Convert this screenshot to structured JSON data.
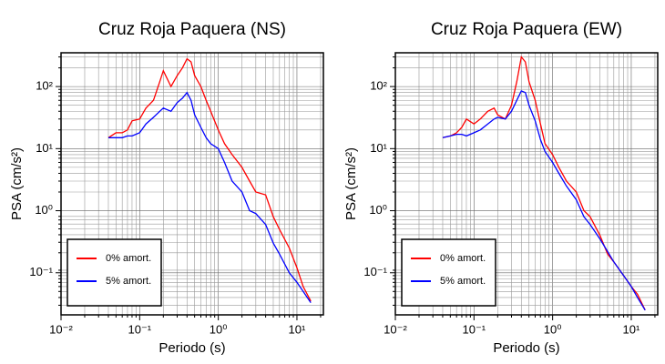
{
  "chart_data": [
    {
      "type": "line",
      "title": "Cruz Roja Paquera (NS)",
      "xlabel": "Periodo (s)",
      "ylabel": "PSA (cm/s²)",
      "x": [
        0.04,
        0.05,
        0.06,
        0.07,
        0.08,
        0.1,
        0.12,
        0.15,
        0.18,
        0.2,
        0.25,
        0.3,
        0.35,
        0.4,
        0.45,
        0.5,
        0.6,
        0.7,
        0.8,
        1.0,
        1.2,
        1.5,
        2,
        2.5,
        3,
        4,
        5,
        6,
        8,
        10,
        12,
        15
      ],
      "series": [
        {
          "name": "0% amort.",
          "color": "#ff0000",
          "values": [
            15,
            18,
            18,
            20,
            28,
            30,
            45,
            60,
            120,
            180,
            100,
            150,
            200,
            280,
            250,
            150,
            100,
            60,
            40,
            20,
            12,
            8,
            5,
            3,
            2,
            1.8,
            0.8,
            0.5,
            0.25,
            0.12,
            0.06,
            0.035
          ]
        },
        {
          "name": "5% amort.",
          "color": "#0000ff",
          "values": [
            15,
            15,
            15,
            16,
            16,
            18,
            25,
            32,
            40,
            45,
            40,
            55,
            65,
            80,
            60,
            35,
            22,
            15,
            12,
            10,
            6,
            3,
            2,
            1,
            0.9,
            0.6,
            0.3,
            0.2,
            0.1,
            0.07,
            0.05,
            0.033
          ]
        }
      ],
      "xlim": [
        0.01,
        21.7
      ],
      "ylim": [
        0.021,
        350
      ],
      "log": true,
      "grid": true,
      "legend": "lower left",
      "xticks": [
        {
          "value": 0.01,
          "label": "10⁻²"
        },
        {
          "value": 0.1,
          "label": "10⁻¹"
        },
        {
          "value": 1,
          "label": "10⁰"
        },
        {
          "value": 10,
          "label": "10¹"
        }
      ],
      "yticks": [
        {
          "value": 0.1,
          "label": "10⁻¹"
        },
        {
          "value": 1,
          "label": "10⁰"
        },
        {
          "value": 10,
          "label": "10¹"
        },
        {
          "value": 100,
          "label": "10²"
        }
      ]
    },
    {
      "type": "line",
      "title": "Cruz Roja Paquera (EW)",
      "xlabel": "Periodo (s)",
      "ylabel": "PSA (cm/s²)",
      "x": [
        0.04,
        0.05,
        0.06,
        0.07,
        0.08,
        0.1,
        0.12,
        0.15,
        0.18,
        0.2,
        0.25,
        0.3,
        0.35,
        0.4,
        0.45,
        0.5,
        0.6,
        0.7,
        0.8,
        1.0,
        1.2,
        1.5,
        2,
        2.5,
        3,
        4,
        5,
        6,
        8,
        10,
        12,
        15
      ],
      "series": [
        {
          "name": "0% amort.",
          "color": "#ff0000",
          "values": [
            15,
            16,
            18,
            22,
            30,
            25,
            30,
            40,
            45,
            35,
            30,
            50,
            120,
            300,
            250,
            120,
            60,
            25,
            12,
            8,
            5,
            3,
            2,
            1,
            0.8,
            0.4,
            0.2,
            0.15,
            0.09,
            0.06,
            0.045,
            0.025
          ]
        },
        {
          "name": "5% amort.",
          "color": "#0000ff",
          "values": [
            15,
            16,
            17,
            17,
            16,
            18,
            20,
            25,
            30,
            32,
            30,
            40,
            60,
            85,
            80,
            50,
            28,
            14,
            9,
            6,
            4,
            2.5,
            1.5,
            0.8,
            0.6,
            0.35,
            0.22,
            0.15,
            0.09,
            0.06,
            0.04,
            0.025
          ]
        }
      ],
      "xlim": [
        0.01,
        21.7
      ],
      "ylim": [
        0.021,
        350
      ],
      "log": true,
      "grid": true,
      "legend": "lower left",
      "xticks": [
        {
          "value": 0.01,
          "label": "10⁻²"
        },
        {
          "value": 0.1,
          "label": "10⁻¹"
        },
        {
          "value": 1,
          "label": "10⁰"
        },
        {
          "value": 10,
          "label": "10¹"
        }
      ],
      "yticks": [
        {
          "value": 0.1,
          "label": "10⁻¹"
        },
        {
          "value": 1,
          "label": "10⁰"
        },
        {
          "value": 10,
          "label": "10¹"
        },
        {
          "value": 100,
          "label": "10²"
        }
      ]
    }
  ]
}
